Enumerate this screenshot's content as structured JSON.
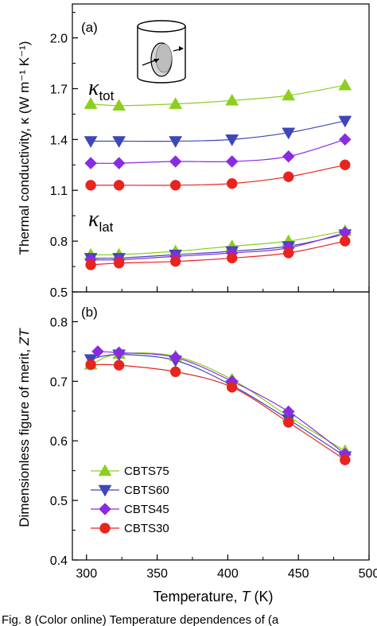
{
  "chart_data": [
    {
      "panel_label": "(a)",
      "type": "line",
      "xlabel_text": "Temperature,",
      "xlabel_var": "T",
      "xlabel_unit": "(K)",
      "ylabel": "Thermal conductivity, κ (W m⁻¹ K⁻¹)",
      "xlim": [
        290,
        500
      ],
      "ylim": [
        0.5,
        2.2
      ],
      "yticks": [
        "0.5",
        "0.8",
        "1.1",
        "1.4",
        "1.7",
        "2.0"
      ],
      "annotations": [
        {
          "symbol": "κ",
          "sub": "tot"
        },
        {
          "symbol": "κ",
          "sub": "lat"
        }
      ],
      "inset": "cylinder-sample-icon",
      "series": [
        {
          "name": "CBTS75",
          "group": "tot",
          "marker": "triangle-up",
          "color": "#8ccf1e",
          "x": [
            303,
            323,
            363,
            403,
            443,
            483
          ],
          "y": [
            1.61,
            1.6,
            1.61,
            1.63,
            1.66,
            1.72
          ]
        },
        {
          "name": "CBTS60",
          "group": "tot",
          "marker": "triangle-down",
          "color": "#3e47b8",
          "x": [
            303,
            323,
            363,
            403,
            443,
            483
          ],
          "y": [
            1.39,
            1.39,
            1.39,
            1.4,
            1.44,
            1.51
          ]
        },
        {
          "name": "CBTS45",
          "group": "tot",
          "marker": "diamond",
          "color": "#8a2be2",
          "x": [
            303,
            323,
            363,
            403,
            443,
            483
          ],
          "y": [
            1.26,
            1.26,
            1.27,
            1.27,
            1.3,
            1.4
          ]
        },
        {
          "name": "CBTS30",
          "group": "tot",
          "marker": "circle",
          "color": "#e8241e",
          "x": [
            303,
            323,
            363,
            403,
            443,
            483
          ],
          "y": [
            1.13,
            1.13,
            1.13,
            1.14,
            1.18,
            1.25
          ]
        },
        {
          "name": "CBTS75",
          "group": "lat",
          "marker": "triangle-up",
          "color": "#8ccf1e",
          "x": [
            303,
            323,
            363,
            403,
            443,
            483
          ],
          "y": [
            0.72,
            0.72,
            0.74,
            0.77,
            0.8,
            0.86
          ]
        },
        {
          "name": "CBTS60",
          "group": "lat",
          "marker": "triangle-down",
          "color": "#3e47b8",
          "x": [
            303,
            323,
            363,
            403,
            443,
            483
          ],
          "y": [
            0.7,
            0.7,
            0.72,
            0.74,
            0.77,
            0.84
          ]
        },
        {
          "name": "CBTS45",
          "group": "lat",
          "marker": "diamond",
          "color": "#8a2be2",
          "x": [
            303,
            323,
            363,
            403,
            443,
            483
          ],
          "y": [
            0.69,
            0.69,
            0.71,
            0.73,
            0.76,
            0.85
          ]
        },
        {
          "name": "CBTS30",
          "group": "lat",
          "marker": "circle",
          "color": "#e8241e",
          "x": [
            303,
            323,
            363,
            403,
            443,
            483
          ],
          "y": [
            0.66,
            0.67,
            0.68,
            0.7,
            0.73,
            0.8
          ]
        }
      ]
    },
    {
      "panel_label": "(b)",
      "type": "line",
      "xlabel_text": "Temperature,",
      "xlabel_var": "T",
      "xlabel_unit": "(K)",
      "ylabel": "Dimensionless figure of merit,",
      "ylabel_var": "ZT",
      "xlim": [
        290,
        500
      ],
      "ylim": [
        0.4,
        0.85
      ],
      "xticks": [
        "300",
        "350",
        "400",
        "450",
        "500"
      ],
      "yticks": [
        "0.4",
        "0.5",
        "0.6",
        "0.7",
        "0.8"
      ],
      "legend": "lower-left",
      "series": [
        {
          "name": "CBTS75",
          "marker": "triangle-up",
          "color": "#8ccf1e",
          "x": [
            303,
            323,
            363,
            403,
            443,
            483
          ],
          "y": [
            0.728,
            0.746,
            0.742,
            0.703,
            0.641,
            0.583
          ]
        },
        {
          "name": "CBTS60",
          "marker": "triangle-down",
          "color": "#3e47b8",
          "x": [
            303,
            323,
            363,
            403,
            443,
            483
          ],
          "y": [
            0.737,
            0.745,
            0.735,
            0.693,
            0.636,
            0.574
          ]
        },
        {
          "name": "CBTS45",
          "marker": "diamond",
          "color": "#8a2be2",
          "x": [
            308,
            323,
            363,
            403,
            443,
            483
          ],
          "y": [
            0.75,
            0.748,
            0.74,
            0.7,
            0.649,
            0.578
          ]
        },
        {
          "name": "CBTS30",
          "marker": "circle",
          "color": "#e8241e",
          "x": [
            303,
            323,
            363,
            403,
            443,
            483
          ],
          "y": [
            0.728,
            0.727,
            0.716,
            0.69,
            0.631,
            0.568
          ]
        }
      ]
    }
  ],
  "caption_text": "Fig. 8   (Color online) Temperature dependences of (a"
}
